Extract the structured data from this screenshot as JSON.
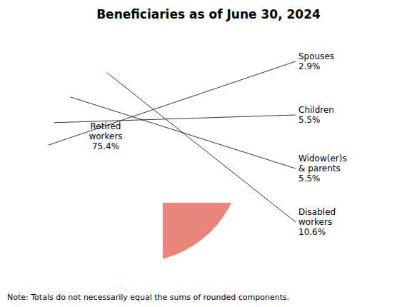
{
  "chart_data": {
    "type": "pie",
    "title": "Beneficiaries as of June 30, 2024",
    "categories": [
      "Retired\nworkers",
      "Spouses",
      "Children",
      "Widow(er)s\n& parents",
      "Disabled\nworkers"
    ],
    "values": [
      75.4,
      2.9,
      5.5,
      5.5,
      10.6
    ],
    "value_labels": [
      "75.4%",
      "2.9%",
      "5.5%",
      "5.5%",
      "10.6%"
    ],
    "data_labels": true,
    "colors": [
      "#E8857A",
      "#2B5BAA",
      "#22B878",
      "#EEF07A",
      "#ADD8E8"
    ],
    "note": "Note: Totals do not necessarily equal the sums of rounded components."
  }
}
